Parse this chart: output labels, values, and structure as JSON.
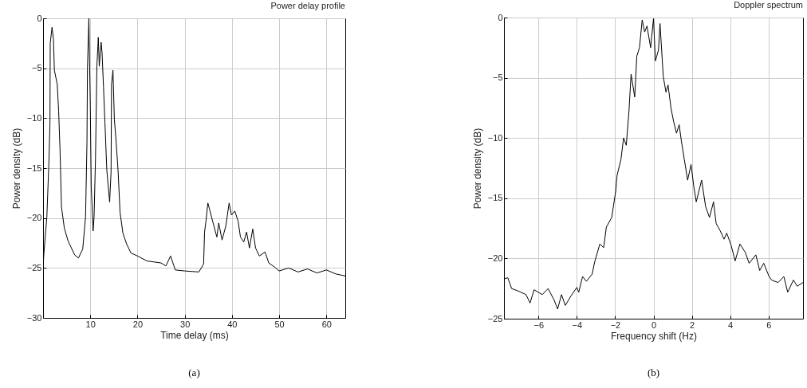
{
  "chart_data": [
    {
      "type": "line",
      "title": "Power delay profile",
      "xlabel": "Time delay  (ms)",
      "ylabel": "Power density  (dB)",
      "annotations": [
        "(a)"
      ],
      "series": [
        {
          "color": "#000000",
          "x": [
            0,
            0.2,
            0.8,
            1.2,
            1.46,
            1.52,
            1.9,
            2.2,
            2.4,
            3.0,
            3.3,
            3.6,
            3.9,
            4.5,
            5.3,
            6.7,
            7.5,
            8.4,
            9.0,
            9.3,
            9.4,
            9.7,
            10.0,
            10.2,
            10.6,
            10.8,
            11.1,
            11.4,
            11.7,
            11.9,
            12.3,
            12.5,
            12.8,
            13.1,
            13.5,
            14.1,
            14.4,
            14.5,
            14.8,
            15.1,
            15.5,
            15.9,
            16.3,
            16.9,
            17.7,
            18.6,
            20,
            22,
            25,
            26,
            27,
            28,
            30,
            33,
            34.0,
            34.2,
            34.5,
            34.9,
            35.3,
            35.9,
            36.8,
            37.2,
            37.9,
            38.7,
            39.4,
            39.9,
            40.6,
            41.3,
            41.8,
            42.5,
            43.1,
            43.7,
            44.4,
            45.0,
            45.8,
            47.0,
            47.8,
            49,
            50,
            52,
            54,
            56,
            58,
            60,
            62,
            64
          ],
          "values": [
            -24.8,
            -23.4,
            -19.9,
            -14.9,
            -10.6,
            -2.5,
            -0.9,
            -2.1,
            -5.2,
            -6.6,
            -9.3,
            -13.3,
            -18.9,
            -21.0,
            -22.3,
            -23.7,
            -24.0,
            -23.1,
            -19.9,
            -12.4,
            -5.0,
            0,
            -8.8,
            -16.8,
            -21.3,
            -19.9,
            -14.1,
            -4.8,
            -1.9,
            -4.8,
            -2.4,
            -3.5,
            -6.9,
            -10.4,
            -15.2,
            -18.4,
            -15.4,
            -6.6,
            -5.2,
            -10.1,
            -12.5,
            -15.4,
            -19.4,
            -21.5,
            -22.6,
            -23.5,
            -23.8,
            -24.3,
            -24.5,
            -24.8,
            -23.8,
            -25.2,
            -25.3,
            -25.4,
            -24.6,
            -21.4,
            -20.3,
            -18.5,
            -19.2,
            -20.3,
            -21.9,
            -20.5,
            -22.2,
            -20.8,
            -18.5,
            -19.7,
            -19.3,
            -20.3,
            -21.9,
            -22.4,
            -21.4,
            -23.0,
            -21.1,
            -23.0,
            -23.8,
            -23.4,
            -24.5,
            -24.9,
            -25.3,
            -25.0,
            -25.4,
            -25.1,
            -25.5,
            -25.2,
            -25.6,
            -25.8
          ]
        }
      ],
      "xlim": [
        0,
        64
      ],
      "xticks": [
        10,
        20,
        30,
        40,
        50,
        60
      ],
      "ylim": [
        -30,
        0
      ],
      "yticks": [
        -30,
        -25,
        -20,
        -15,
        -10,
        -5,
        0
      ],
      "grid": true
    },
    {
      "type": "line",
      "title": "Doppler spectrum",
      "xlabel": "Frequency shift  (Hz)",
      "ylabel": "Power density  (dB)",
      "annotations": [
        "(b)"
      ],
      "series": [
        {
          "color": "#000000",
          "x": [
            -7.8,
            -7.6,
            -7.4,
            -7.06,
            -6.65,
            -6.44,
            -6.23,
            -5.8,
            -5.5,
            -5.2,
            -5.0,
            -4.8,
            -4.6,
            -4.3,
            -4.0,
            -3.9,
            -3.7,
            -3.5,
            -3.2,
            -3.07,
            -2.8,
            -2.6,
            -2.46,
            -2.18,
            -1.97,
            -1.9,
            -1.7,
            -1.56,
            -1.42,
            -1.28,
            -1.17,
            -0.98,
            -0.87,
            -0.73,
            -0.59,
            -0.46,
            -0.34,
            -0.15,
            0,
            0.1,
            0.26,
            0.34,
            0.51,
            0.65,
            0.76,
            0.92,
            1.06,
            1.2,
            1.34,
            1.45,
            1.61,
            1.78,
            1.96,
            2.1,
            2.23,
            2.51,
            2.72,
            2.92,
            3.13,
            3.27,
            3.48,
            3.68,
            3.82,
            4.03,
            4.26,
            4.51,
            4.79,
            4.99,
            5.34,
            5.54,
            5.75,
            6.03,
            6.17,
            6.5,
            6.8,
            7.0,
            7.3,
            7.5,
            7.8
          ],
          "values": [
            -21.7,
            -21.6,
            -22.5,
            -22.7,
            -23.0,
            -23.7,
            -22.6,
            -23.0,
            -22.5,
            -23.4,
            -24.2,
            -23.0,
            -23.9,
            -23.1,
            -22.4,
            -22.8,
            -21.5,
            -21.9,
            -21.3,
            -20.3,
            -18.8,
            -19.1,
            -17.4,
            -16.6,
            -14.4,
            -13.1,
            -11.8,
            -10.0,
            -10.6,
            -7.8,
            -4.7,
            -6.6,
            -3.2,
            -2.5,
            -0.2,
            -1.2,
            -0.7,
            -2.5,
            -0.1,
            -3.6,
            -2.7,
            -0.5,
            -4.9,
            -6.2,
            -5.6,
            -7.6,
            -8.7,
            -9.6,
            -8.9,
            -10.2,
            -11.8,
            -13.5,
            -12.2,
            -14.0,
            -15.3,
            -13.5,
            -15.7,
            -16.6,
            -15.3,
            -17.1,
            -17.7,
            -18.4,
            -17.9,
            -18.8,
            -20.2,
            -18.8,
            -19.5,
            -20.4,
            -19.7,
            -21.0,
            -20.4,
            -21.5,
            -21.8,
            -22.0,
            -21.5,
            -22.8,
            -21.8,
            -22.3,
            -22.0
          ]
        }
      ],
      "xlim": [
        -7.8,
        7.8
      ],
      "xticks": [
        -6,
        -4,
        -2,
        0,
        2,
        4,
        6
      ],
      "ylim": [
        -25,
        0
      ],
      "yticks": [
        -25,
        -20,
        -15,
        -10,
        -5,
        0
      ],
      "grid": true
    }
  ]
}
